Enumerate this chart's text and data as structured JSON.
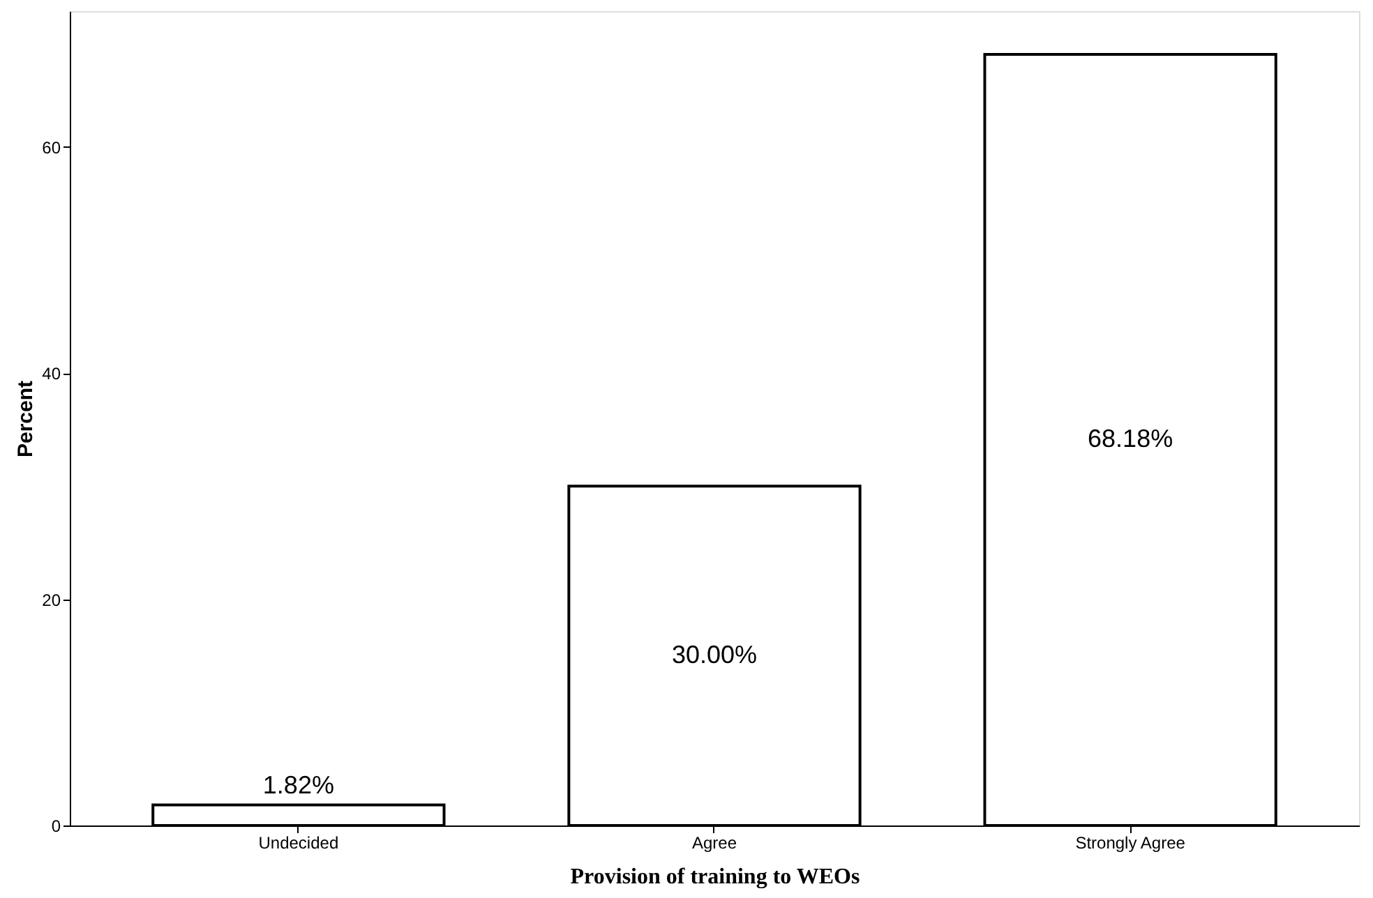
{
  "chart_data": {
    "type": "bar",
    "categories": [
      "Undecided",
      "Agree",
      "Strongly Agree"
    ],
    "values": [
      1.82,
      30.0,
      68.18
    ],
    "value_labels": [
      "1.82%",
      "30.00%",
      "68.18%"
    ],
    "color": "#ffffff",
    "xlabel": "Provision of training to WEOs",
    "ylabel": "Percent",
    "ylim": [
      0,
      72
    ],
    "yticks": [
      0,
      20,
      40,
      60
    ],
    "grid": false
  }
}
